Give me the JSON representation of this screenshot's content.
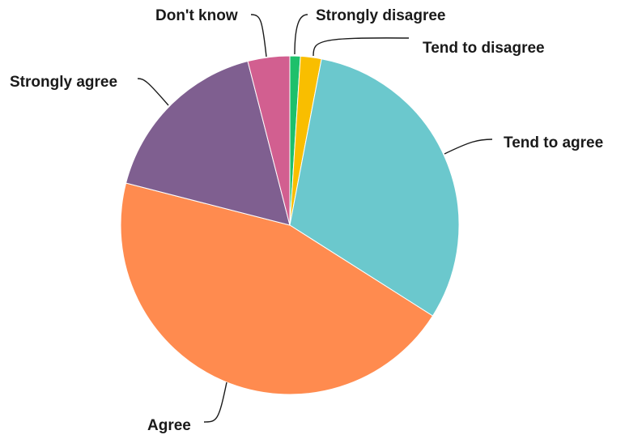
{
  "chart_data": {
    "type": "pie",
    "title": "",
    "slices": [
      {
        "label": "Strongly disagree",
        "value": 1,
        "color": "#1ec06b"
      },
      {
        "label": "Tend to disagree",
        "value": 2,
        "color": "#f9be00"
      },
      {
        "label": "Tend to agree",
        "value": 31,
        "color": "#6bc8cd"
      },
      {
        "label": "Agree",
        "value": 45,
        "color": "#ff8b4f"
      },
      {
        "label": "Strongly agree",
        "value": 17,
        "color": "#7f5f90"
      },
      {
        "label": "Don't know",
        "value": 4,
        "color": "#d25f90"
      }
    ],
    "grid": false,
    "legend": "none"
  }
}
